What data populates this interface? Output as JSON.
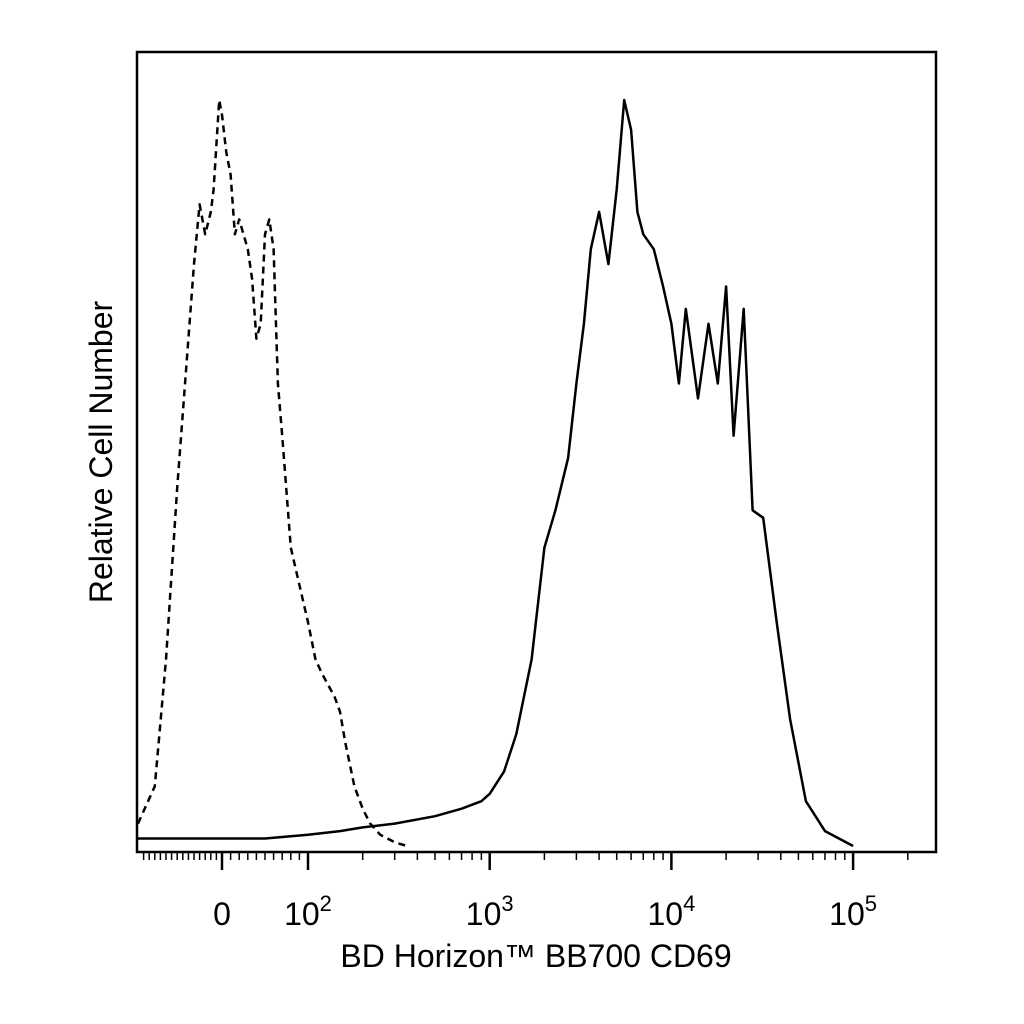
{
  "chart_data": {
    "type": "line",
    "title": "",
    "xlabel": "BD Horizon™ BB700 CD69",
    "ylabel": "Relative Cell Number",
    "x_scale": "biexponential",
    "xlim": [
      -150,
      250000
    ],
    "ylim": [
      0,
      100
    ],
    "grid": false,
    "legend": "none",
    "x_tick_labels": [
      {
        "value": 0,
        "base": "0",
        "exp": ""
      },
      {
        "value": 100,
        "base": "10",
        "exp": "2"
      },
      {
        "value": 1000,
        "base": "10",
        "exp": "3"
      },
      {
        "value": 10000,
        "base": "10",
        "exp": "4"
      },
      {
        "value": 100000,
        "base": "10",
        "exp": "5"
      }
    ],
    "series": [
      {
        "line_style": "dashed",
        "color": "#000000",
        "x": [
          -150,
          -120,
          -100,
          -80,
          -60,
          -50,
          -40,
          -30,
          -20,
          -15,
          -10,
          -5,
          0,
          5,
          10,
          15,
          20,
          25,
          30,
          35,
          40,
          45,
          50,
          55,
          60,
          65,
          70,
          80,
          90,
          100,
          110,
          120,
          140,
          150,
          160,
          180,
          200,
          220,
          250,
          300,
          350
        ],
        "y": [
          3,
          8,
          25,
          48,
          68,
          78,
          86,
          82,
          85,
          88,
          94,
          100,
          98,
          93,
          90,
          82,
          84,
          82,
          80,
          76,
          68,
          70,
          82,
          84,
          80,
          62,
          55,
          40,
          35,
          30,
          25,
          23,
          20,
          18,
          14,
          8,
          5,
          3,
          1.5,
          0.5,
          0
        ]
      },
      {
        "line_style": "solid",
        "color": "#000000",
        "x": [
          -150,
          0,
          50,
          100,
          150,
          200,
          300,
          500,
          700,
          900,
          1000,
          1200,
          1400,
          1700,
          2000,
          2300,
          2700,
          3000,
          3300,
          3600,
          4000,
          4500,
          5000,
          5500,
          6000,
          6500,
          7000,
          8000,
          9000,
          10000,
          11000,
          12000,
          14000,
          16000,
          18000,
          20000,
          22000,
          25000,
          28000,
          32000,
          38000,
          45000,
          55000,
          70000,
          100000
        ],
        "y": [
          1,
          1,
          1,
          1.5,
          2,
          2.5,
          3,
          4,
          5,
          6,
          7,
          10,
          15,
          25,
          40,
          45,
          52,
          62,
          70,
          80,
          85,
          78,
          88,
          100,
          96,
          85,
          82,
          80,
          75,
          70,
          62,
          72,
          60,
          70,
          62,
          75,
          55,
          72,
          45,
          44,
          30,
          17,
          6,
          2,
          0
        ]
      }
    ]
  }
}
